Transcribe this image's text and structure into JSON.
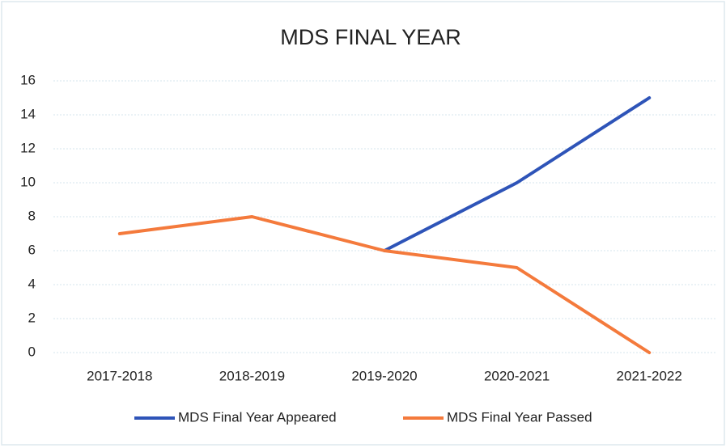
{
  "chart_data": {
    "type": "line",
    "title": "MDS FINAL YEAR",
    "categories": [
      "2017-2018",
      "2018-2019",
      "2019-2020",
      "2020-2021",
      "2021-2022"
    ],
    "series": [
      {
        "name": "MDS Final Year Appeared",
        "color": "#2e54b8",
        "values": [
          null,
          null,
          6,
          10,
          15
        ]
      },
      {
        "name": "MDS Final Year Passed",
        "color": "#f47a3c",
        "values": [
          7,
          8,
          6,
          5,
          0
        ]
      }
    ],
    "ylim": [
      0,
      16
    ],
    "yticks": [
      0,
      2,
      4,
      6,
      8,
      10,
      12,
      14,
      16
    ],
    "grid": true,
    "legend": "bottom"
  }
}
